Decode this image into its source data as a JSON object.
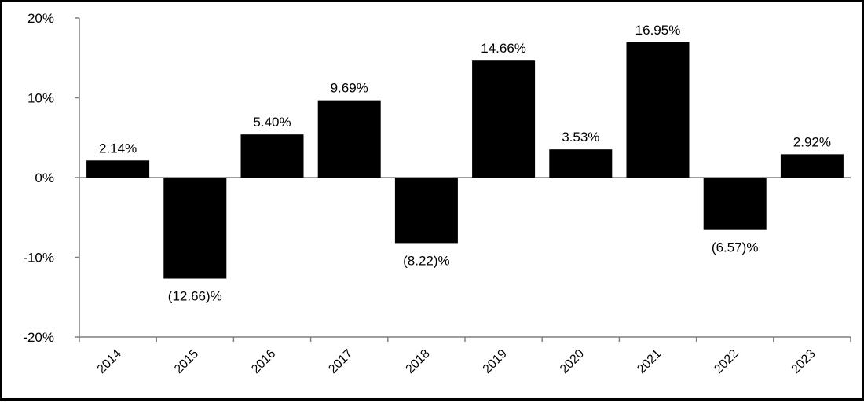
{
  "chart_data": {
    "type": "bar",
    "title": "",
    "xlabel": "",
    "ylabel": "",
    "categories": [
      "2014",
      "2015",
      "2016",
      "2017",
      "2018",
      "2019",
      "2020",
      "2021",
      "2022",
      "2023"
    ],
    "values": [
      2.14,
      -12.66,
      5.4,
      9.69,
      -8.22,
      14.66,
      3.53,
      16.95,
      -6.57,
      2.92
    ],
    "data_labels": [
      "2.14%",
      "(12.66)%",
      "5.40%",
      "9.69%",
      "(8.22)%",
      "14.66%",
      "3.53%",
      "16.95%",
      "(6.57)%",
      "2.92%"
    ],
    "ylim": [
      -20,
      20
    ],
    "yticks": [
      20,
      10,
      0,
      -10,
      -20
    ],
    "ytick_labels": [
      "20%",
      "10%",
      "0%",
      "-10%",
      "-20%"
    ],
    "grid": false,
    "legend": "none",
    "bar_color": "#000000"
  }
}
